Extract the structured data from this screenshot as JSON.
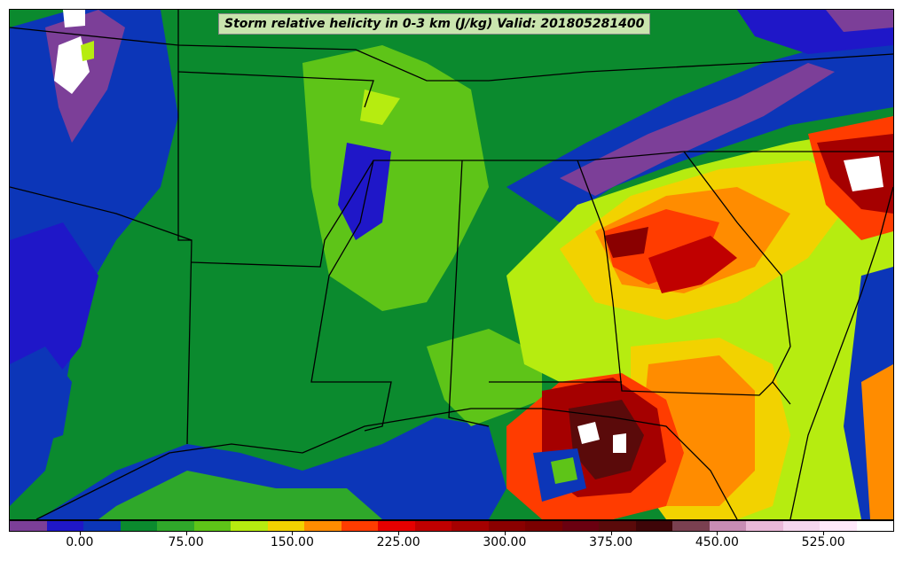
{
  "title": "Storm relative helicity in 0-3 km (J/kg) Valid: 201805281400",
  "colorbar": {
    "ticks": [
      {
        "value": 0,
        "label": "0.00"
      },
      {
        "value": 75,
        "label": "75.00"
      },
      {
        "value": 150,
        "label": "150.00"
      },
      {
        "value": 225,
        "label": "225.00"
      },
      {
        "value": 300,
        "label": "300.00"
      },
      {
        "value": 375,
        "label": "375.00"
      },
      {
        "value": 450,
        "label": "450.00"
      },
      {
        "value": 525,
        "label": "525.00"
      }
    ],
    "min": -50,
    "max": 575,
    "colors": [
      "#7c3f98",
      "#7c3f98",
      "#1f17c8",
      "#1f17c8",
      "#0c36b8",
      "#0c36b8",
      "#0b8a2e",
      "#0b8a2e",
      "#2fa82a",
      "#2fa82a",
      "#5ec418",
      "#5ec418",
      "#b6ec10",
      "#b6ec10",
      "#f2d200",
      "#f2d200",
      "#ff8c00",
      "#ff8c00",
      "#ff3c00",
      "#ff3c00",
      "#e60000",
      "#e60000",
      "#c00000",
      "#c00000",
      "#a50000",
      "#a50000",
      "#8a0000",
      "#8a0000",
      "#7a0000",
      "#7a0000",
      "#6a0010",
      "#6a0010",
      "#5a0a0a",
      "#5a0a0a",
      "#3e0508",
      "#3e0508",
      "#7a4050",
      "#7a4050",
      "#c88cb4",
      "#c88cb4",
      "#eab8d8",
      "#eab8d8",
      "#f6d6ee",
      "#f6d6ee",
      "#ffe8fa",
      "#ffe8fa",
      "#ffffff",
      "#ffffff"
    ]
  }
}
